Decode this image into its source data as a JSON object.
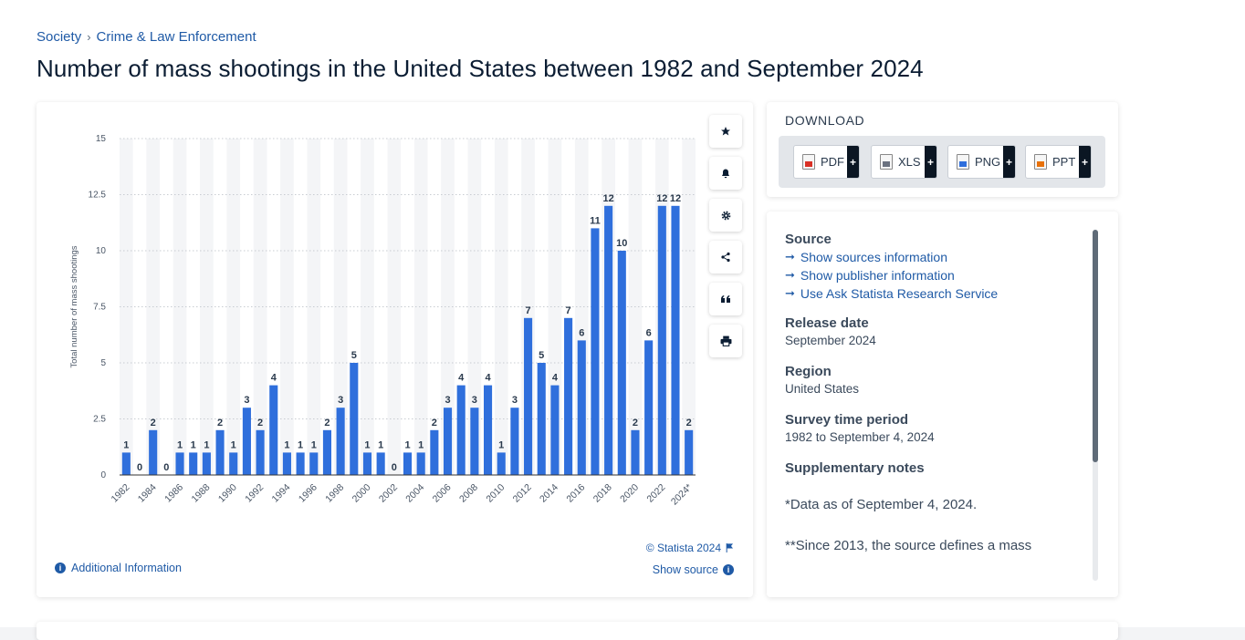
{
  "breadcrumb": {
    "item1": "Society",
    "sep": "›",
    "item2": "Crime & Law Enforcement"
  },
  "page_title": "Number of mass shootings in the United States between 1982 and September 2024",
  "chart_toolbar": [
    "star-icon",
    "bell-icon",
    "gear-icon",
    "share-icon",
    "quote-icon",
    "print-icon"
  ],
  "chart_footer": {
    "additional_info": "Additional Information",
    "copyright": "© Statista 2024",
    "show_source": "Show source"
  },
  "download": {
    "heading": "DOWNLOAD",
    "formats": [
      {
        "label": "PDF",
        "plus": "+"
      },
      {
        "label": "XLS",
        "plus": "+"
      },
      {
        "label": "PNG",
        "plus": "+"
      },
      {
        "label": "PPT",
        "plus": "+"
      }
    ]
  },
  "meta": {
    "source_heading": "Source",
    "source_links": [
      "Show sources information",
      "Show publisher information",
      "Use Ask Statista Research Service"
    ],
    "release_heading": "Release date",
    "release_value": "September 2024",
    "region_heading": "Region",
    "region_value": "United States",
    "survey_heading": "Survey time period",
    "survey_value": "1982 to September 4, 2024",
    "notes_heading": "Supplementary notes",
    "note1": "*Data as of September 4, 2024.",
    "note2": "**Since 2013, the source defines a mass"
  },
  "colors": {
    "bar": "#2f6fdc",
    "accent": "#1f5aa6",
    "title": "#0b1d33"
  },
  "chart_data": {
    "type": "bar",
    "ylabel": "Total number of mass shootings",
    "ylim": [
      0,
      15
    ],
    "yticks": [
      "0",
      "2.5",
      "5",
      "7.5",
      "10",
      "12.5",
      "15"
    ],
    "categories": [
      "1982",
      "1983",
      "1984",
      "1985",
      "1986",
      "1987",
      "1988",
      "1989",
      "1990",
      "1991",
      "1992",
      "1993",
      "1994",
      "1995",
      "1996",
      "1997",
      "1998",
      "1999",
      "2000",
      "2001",
      "2002",
      "2003",
      "2004",
      "2005",
      "2006",
      "2007",
      "2008",
      "2009",
      "2010",
      "2011",
      "2012",
      "2013",
      "2014",
      "2015",
      "2016",
      "2017",
      "2018",
      "2019",
      "2020",
      "2021",
      "2022",
      "2023",
      "2024*"
    ],
    "xtick_labels": [
      "1982",
      "",
      "1984",
      "",
      "1986",
      "",
      "1988",
      "",
      "1990",
      "",
      "1992",
      "",
      "1994",
      "",
      "1996",
      "",
      "1998",
      "",
      "2000",
      "",
      "2002",
      "",
      "2004",
      "",
      "2006",
      "",
      "2008",
      "",
      "2010",
      "",
      "2012",
      "",
      "2014",
      "",
      "2016",
      "",
      "2018",
      "",
      "2020",
      "",
      "2022",
      "",
      "2024*"
    ],
    "values": [
      1,
      0,
      2,
      0,
      1,
      1,
      1,
      2,
      1,
      3,
      2,
      4,
      1,
      1,
      1,
      2,
      3,
      5,
      1,
      1,
      0,
      1,
      1,
      2,
      3,
      4,
      3,
      4,
      1,
      3,
      7,
      5,
      4,
      7,
      6,
      11,
      12,
      10,
      2,
      6,
      12,
      12,
      2
    ],
    "grid": true,
    "alternating_column_bands": true
  }
}
